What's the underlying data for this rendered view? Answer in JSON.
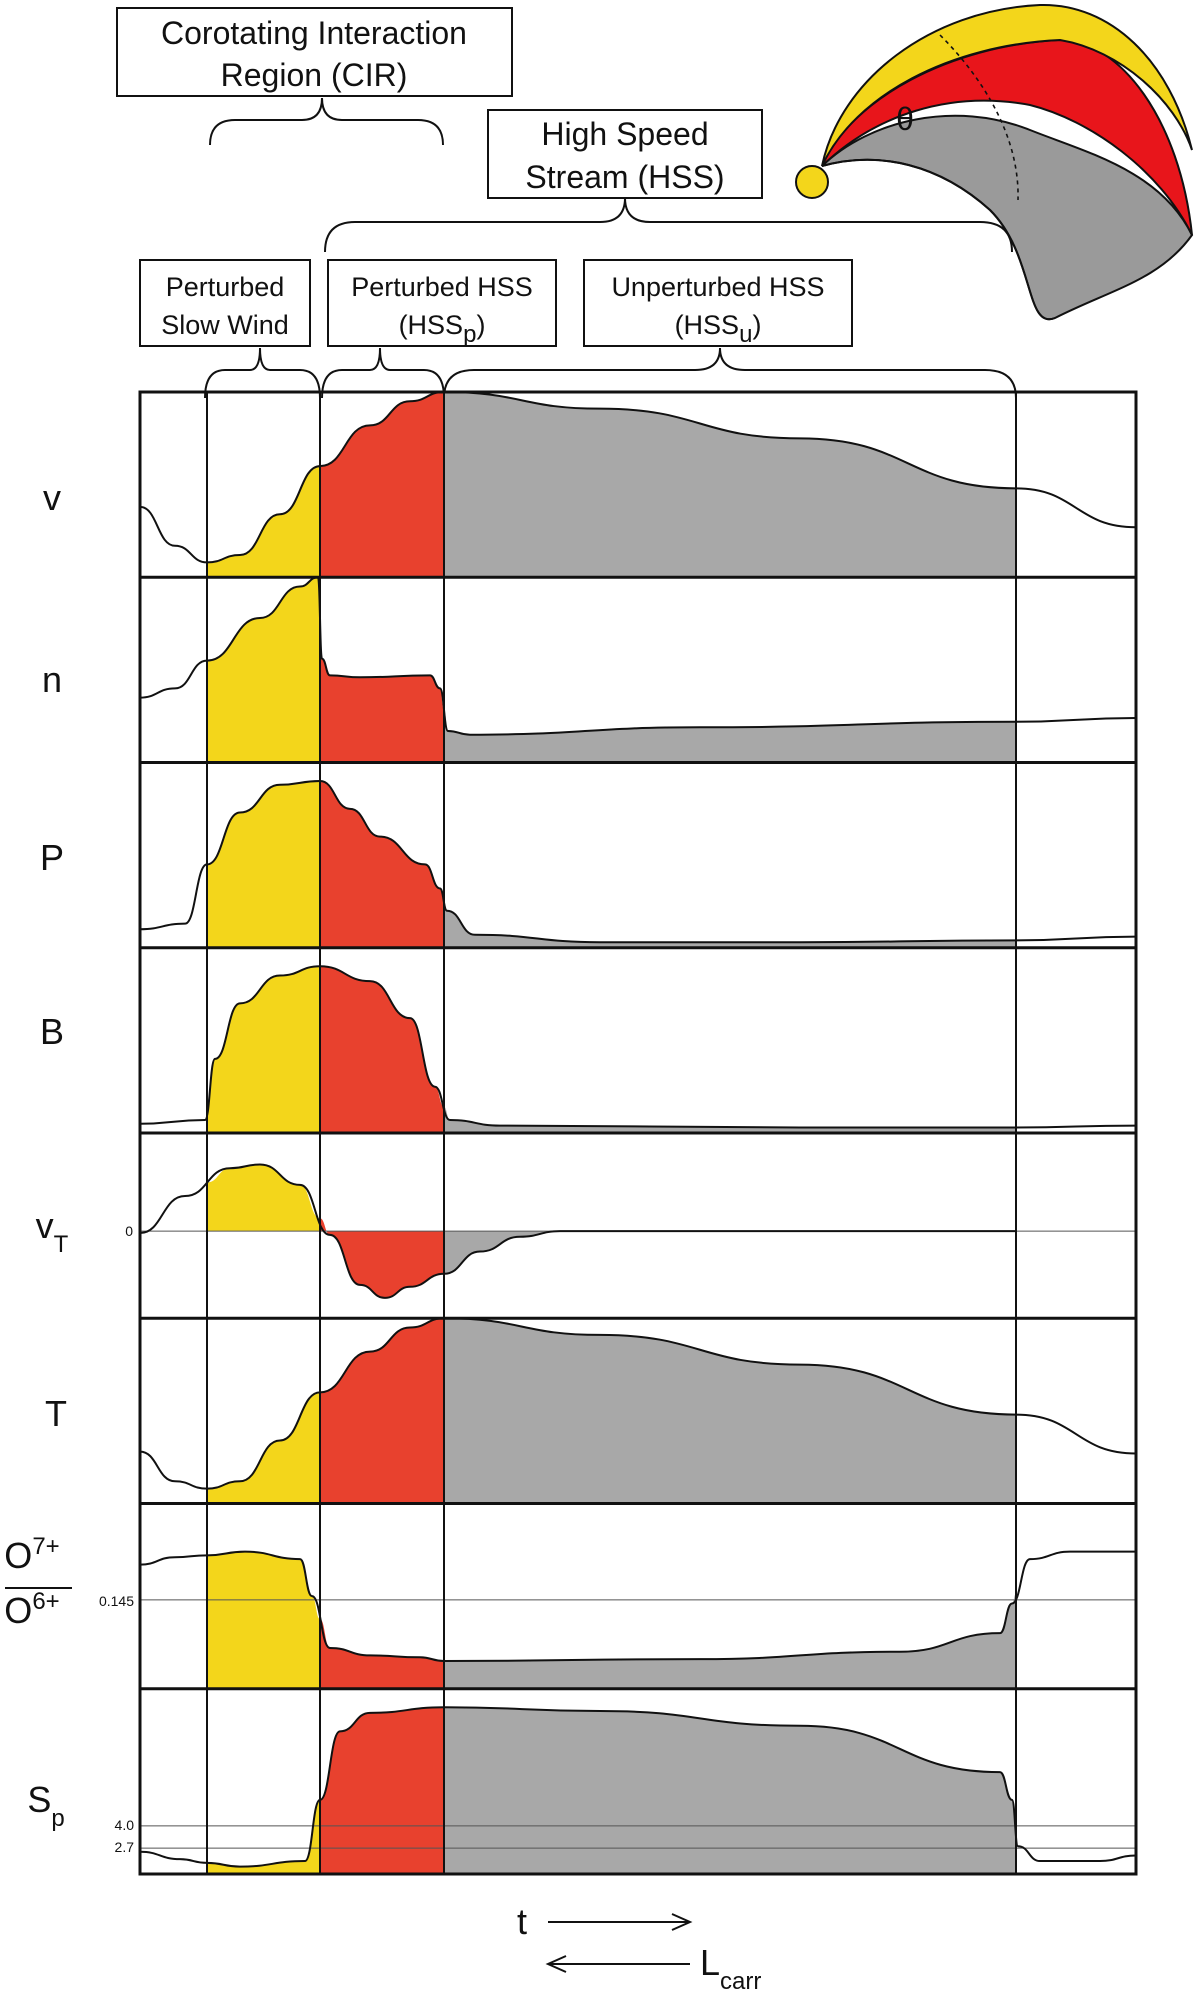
{
  "labels": {
    "cir_line1": "Corotating Interaction",
    "cir_line2": "Region (CIR)",
    "hss_line1": "High Speed",
    "hss_line2": "Stream (HSS)",
    "psw_line1": "Perturbed",
    "psw_line2": "Slow Wind",
    "hssp_line1": "Perturbed HSS",
    "hssp_main": "(HSS",
    "hssp_sub": "p",
    "hssp_close": ")",
    "hssu_line1": "Unperturbed HSS",
    "hssu_main": "(HSS",
    "hssu_sub": "u",
    "hssu_close": ")",
    "theta": "θ"
  },
  "rows": [
    {
      "id": "v",
      "label": "v"
    },
    {
      "id": "n",
      "label": "n"
    },
    {
      "id": "P",
      "label": "P"
    },
    {
      "id": "B",
      "label": "B"
    },
    {
      "id": "vT",
      "label": "v",
      "sub": "T",
      "tick": "0"
    },
    {
      "id": "T",
      "label": "T"
    },
    {
      "id": "O",
      "num": "O",
      "num_sup": "7+",
      "den": "O",
      "den_sup": "6+",
      "tick": "0.145"
    },
    {
      "id": "Sp",
      "label": "S",
      "sub": "p",
      "ticks": [
        "4.0",
        "2.7"
      ]
    }
  ],
  "axis": {
    "t_label": "t",
    "lcarr_main": "L",
    "lcarr_sub": "carr"
  },
  "colors": {
    "perturbed_slow_wind": "#f3d61b",
    "perturbed_hss": "#e8412e",
    "unperturbed_hss": "#a8a8a8",
    "schematic_yellow": "#f3d61b",
    "schematic_red": "#e8151b",
    "schematic_gray": "#9a9a9a"
  },
  "icons": {
    "sun": "sun-icon",
    "stream_schematic": "spiral-stream-schematic"
  }
}
